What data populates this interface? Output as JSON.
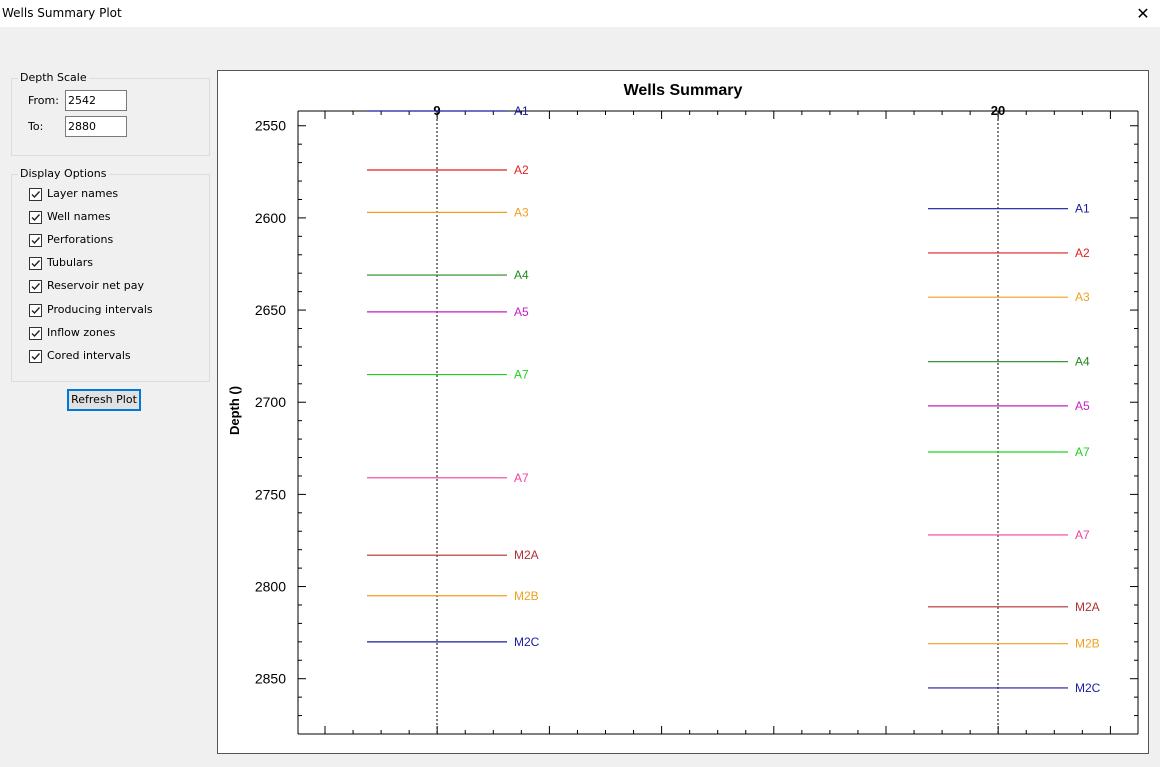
{
  "window": {
    "title": "Wells Summary Plot",
    "close_glyph": "✕"
  },
  "depth_scale": {
    "legend": "Depth Scale",
    "from_label": "From:",
    "from_value": "2542",
    "to_label": "To:",
    "to_value": "2880"
  },
  "display_options": {
    "legend": "Display Options",
    "items": [
      {
        "label": "Layer names",
        "checked": true
      },
      {
        "label": "Well names",
        "checked": true
      },
      {
        "label": "Perforations",
        "checked": true
      },
      {
        "label": "Tubulars",
        "checked": true
      },
      {
        "label": "Reservoir net pay",
        "checked": true
      },
      {
        "label": "Producing intervals",
        "checked": true
      },
      {
        "label": "Inflow zones",
        "checked": true
      },
      {
        "label": "Cored intervals",
        "checked": true
      }
    ]
  },
  "refresh_button": {
    "label": "Refresh Plot"
  },
  "chart_data": {
    "type": "line",
    "title": "Wells Summary",
    "ylabel": "Depth ()",
    "ylim": [
      2542,
      2880
    ],
    "y_inverted": true,
    "yticks": [
      2550,
      2600,
      2650,
      2700,
      2750,
      2800,
      2850
    ],
    "wells": [
      {
        "name": "9",
        "layers": [
          {
            "name": "A1",
            "depth": 2542,
            "color": "#1a1aa0"
          },
          {
            "name": "A2",
            "depth": 2574,
            "color": "#e02020"
          },
          {
            "name": "A3",
            "depth": 2597,
            "color": "#f0a020"
          },
          {
            "name": "A4",
            "depth": 2631,
            "color": "#208a20"
          },
          {
            "name": "A5",
            "depth": 2651,
            "color": "#c020c0"
          },
          {
            "name": "A7",
            "depth": 2685,
            "color": "#20d020"
          },
          {
            "name": "A7",
            "depth": 2741,
            "color": "#f040a0"
          },
          {
            "name": "M2A",
            "depth": 2783,
            "color": "#b03030"
          },
          {
            "name": "M2B",
            "depth": 2805,
            "color": "#f0a020"
          },
          {
            "name": "M2C",
            "depth": 2830,
            "color": "#1a1aa0"
          }
        ]
      },
      {
        "name": "20",
        "layers": [
          {
            "name": "A1",
            "depth": 2595,
            "color": "#1a1aa0"
          },
          {
            "name": "A2",
            "depth": 2619,
            "color": "#e02020"
          },
          {
            "name": "A3",
            "depth": 2643,
            "color": "#f0a020"
          },
          {
            "name": "A4",
            "depth": 2678,
            "color": "#208a20"
          },
          {
            "name": "A5",
            "depth": 2702,
            "color": "#c020c0"
          },
          {
            "name": "A7",
            "depth": 2727,
            "color": "#20d020"
          },
          {
            "name": "A7",
            "depth": 2772,
            "color": "#f040a0"
          },
          {
            "name": "M2A",
            "depth": 2811,
            "color": "#b03030"
          },
          {
            "name": "M2B",
            "depth": 2831,
            "color": "#f0a020"
          },
          {
            "name": "M2C",
            "depth": 2855,
            "color": "#1a1aa0"
          }
        ]
      }
    ]
  }
}
